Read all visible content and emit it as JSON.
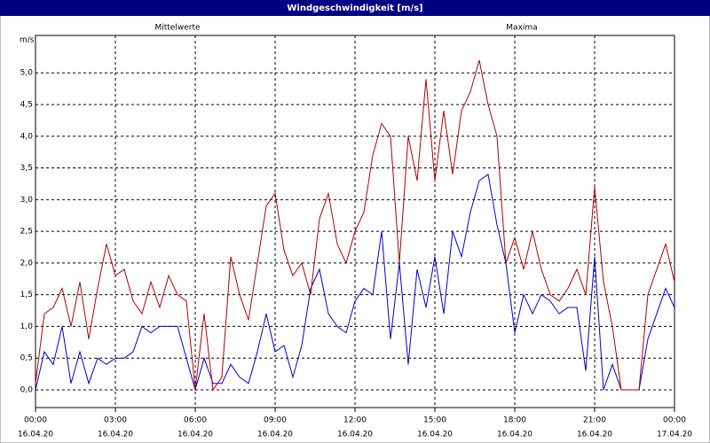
{
  "chart_data": {
    "type": "line",
    "title": "Windgeschwindigkeit [m/s]",
    "y_label": "m/s",
    "x": [
      0,
      20,
      40,
      60,
      80,
      100,
      120,
      140,
      160,
      180,
      200,
      220,
      240,
      260,
      280,
      300,
      320,
      340,
      360,
      380,
      400,
      420,
      440,
      460,
      480,
      500,
      520,
      540,
      560,
      580,
      600,
      620,
      640,
      660,
      680,
      700,
      720,
      740,
      760,
      780,
      800,
      820,
      840,
      860,
      880,
      900,
      920,
      940,
      960,
      980,
      1000,
      1020,
      1040,
      1060,
      1080,
      1100,
      1120,
      1140,
      1160,
      1180,
      1200,
      1220,
      1240,
      1260,
      1280,
      1300,
      1320,
      1340,
      1360,
      1380,
      1400,
      1420,
      1440
    ],
    "series": [
      {
        "name": "Mittelwerte",
        "color": "#0000cc",
        "values": [
          0.0,
          0.6,
          0.4,
          1.0,
          0.1,
          0.6,
          0.1,
          0.5,
          0.4,
          0.5,
          0.5,
          0.6,
          1.0,
          0.9,
          1.0,
          1.0,
          1.0,
          0.5,
          0.0,
          0.5,
          0.1,
          0.1,
          0.4,
          0.2,
          0.1,
          0.6,
          1.2,
          0.6,
          0.7,
          0.2,
          0.7,
          1.6,
          1.9,
          1.2,
          1.0,
          0.9,
          1.4,
          1.6,
          1.5,
          2.5,
          0.8,
          2.0,
          0.4,
          1.9,
          1.3,
          2.1,
          1.2,
          2.5,
          2.1,
          2.8,
          3.3,
          3.4,
          2.6,
          2.0,
          0.9,
          1.5,
          1.2,
          1.5,
          1.4,
          1.2,
          1.3,
          1.3,
          0.3,
          2.1,
          0.0,
          0.4,
          0.0,
          0.0,
          0.0,
          0.8,
          1.2,
          1.6,
          1.3
        ]
      },
      {
        "name": "Maxima",
        "color": "#b00000",
        "values": [
          0.1,
          1.2,
          1.3,
          1.6,
          1.0,
          1.7,
          0.8,
          1.6,
          2.3,
          1.8,
          1.9,
          1.4,
          1.2,
          1.7,
          1.3,
          1.8,
          1.5,
          1.4,
          0.0,
          1.2,
          0.0,
          0.2,
          2.1,
          1.5,
          1.1,
          2.0,
          2.9,
          3.1,
          2.2,
          1.8,
          2.0,
          1.5,
          2.7,
          3.1,
          2.3,
          2.0,
          2.5,
          2.8,
          3.7,
          4.2,
          4.0,
          2.0,
          4.0,
          3.3,
          4.9,
          3.3,
          4.4,
          3.4,
          4.4,
          4.7,
          5.2,
          4.5,
          4.0,
          2.0,
          2.4,
          1.9,
          2.5,
          1.9,
          1.5,
          1.4,
          1.6,
          1.9,
          1.5,
          3.2,
          1.7,
          1.0,
          0.0,
          0.0,
          0.0,
          1.5,
          1.9,
          2.3,
          1.7
        ]
      }
    ],
    "xlim": [
      0,
      1440
    ],
    "ylim": [
      -0.28,
      5.59
    ],
    "xticks": [
      {
        "value": 0,
        "label": "00:00",
        "date": "16.04.20"
      },
      {
        "value": 180,
        "label": "03:00",
        "date": "16.04.20"
      },
      {
        "value": 360,
        "label": "06:00",
        "date": "16.04.20"
      },
      {
        "value": 540,
        "label": "09:00",
        "date": "16.04.20"
      },
      {
        "value": 720,
        "label": "12:00",
        "date": "16.04.20"
      },
      {
        "value": 900,
        "label": "15:00",
        "date": "16.04.20"
      },
      {
        "value": 1080,
        "label": "18:00",
        "date": "16.04.20"
      },
      {
        "value": 1260,
        "label": "21:00",
        "date": "16.04.20"
      },
      {
        "value": 1440,
        "label": "00:00",
        "date": "17.04.20"
      }
    ],
    "yticks": [
      {
        "value": 0,
        "label": "0,0"
      },
      {
        "value": 0.5,
        "label": "0,5"
      },
      {
        "value": 1,
        "label": "1,0"
      },
      {
        "value": 1.5,
        "label": "1,5"
      },
      {
        "value": 2,
        "label": "2,0"
      },
      {
        "value": 2.5,
        "label": "2,5"
      },
      {
        "value": 3,
        "label": "3,0"
      },
      {
        "value": 3.5,
        "label": "3,5"
      },
      {
        "value": 4,
        "label": "4,0"
      },
      {
        "value": 4.5,
        "label": "4,5"
      },
      {
        "value": 5,
        "label": "5,0"
      }
    ],
    "grid": true
  }
}
